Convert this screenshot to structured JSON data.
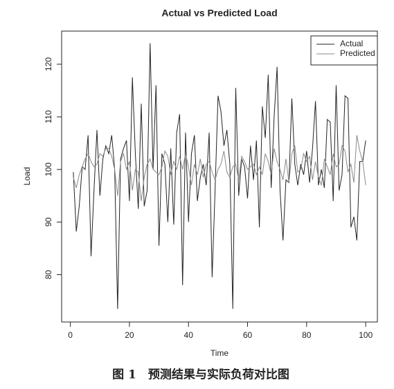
{
  "chart_data": {
    "type": "line",
    "title": "Actual vs Predicted Load",
    "xlabel": "Time",
    "ylabel": "Load",
    "x": [
      1,
      2,
      3,
      4,
      5,
      6,
      7,
      8,
      9,
      10,
      11,
      12,
      13,
      14,
      15,
      16,
      17,
      18,
      19,
      20,
      21,
      22,
      23,
      24,
      25,
      26,
      27,
      28,
      29,
      30,
      31,
      32,
      33,
      34,
      35,
      36,
      37,
      38,
      39,
      40,
      41,
      42,
      43,
      44,
      45,
      46,
      47,
      48,
      49,
      50,
      51,
      52,
      53,
      54,
      55,
      56,
      57,
      58,
      59,
      60,
      61,
      62,
      63,
      64,
      65,
      66,
      67,
      68,
      69,
      70,
      71,
      72,
      73,
      74,
      75,
      76,
      77,
      78,
      79,
      80,
      81,
      82,
      83,
      84,
      85,
      86,
      87,
      88,
      89,
      90,
      91,
      92,
      93,
      94,
      95,
      96,
      97,
      98,
      99,
      100
    ],
    "series": [
      {
        "name": "Actual",
        "color": "#222222",
        "values": [
          99.5,
          88.2,
          93,
          100.5,
          100,
          106.5,
          83.5,
          96,
          107.5,
          95,
          102,
          104.5,
          103,
          106.5,
          100,
          73.5,
          102,
          104,
          105.5,
          94,
          117.5,
          103,
          92.5,
          112.5,
          93,
          96,
          124,
          100,
          116,
          85.5,
          103,
          101,
          90,
          104,
          89.5,
          107,
          110.5,
          78,
          107,
          90,
          103,
          106.5,
          94,
          98.5,
          101,
          97,
          107,
          79.5,
          96,
          114,
          111,
          104.5,
          107.5,
          101,
          73.5,
          115.5,
          95,
          102,
          100.5,
          94.5,
          104.5,
          98,
          105.5,
          89,
          112,
          106,
          118,
          96.5,
          110,
          119.5,
          96,
          86.5,
          98,
          97.5,
          113.5,
          101,
          97,
          101,
          99,
          103.5,
          97.5,
          104,
          113,
          97,
          100,
          96.5,
          109.5,
          109,
          94,
          116,
          96,
          99,
          114,
          113.5,
          89,
          91,
          86.5,
          101.5,
          101.5,
          105.5
        ]
      },
      {
        "name": "Predicted",
        "color": "#888888",
        "values": [
          98.5,
          96.5,
          99,
          100.5,
          102,
          103,
          101.5,
          100.5,
          101,
          103,
          102.5,
          104,
          104,
          102.5,
          100,
          95,
          101.5,
          103,
          100,
          101.5,
          96,
          100,
          99.5,
          94,
          98.5,
          101,
          102,
          100,
          99.5,
          99,
          100.5,
          103.5,
          102.5,
          99,
          101.5,
          100,
          102.5,
          100,
          103,
          100.5,
          97,
          101,
          99,
          102,
          98.5,
          101,
          101.5,
          99.5,
          98,
          100,
          101,
          103.5,
          99.5,
          98.5,
          100.5,
          101,
          98,
          102.5,
          101.5,
          100,
          100.5,
          101,
          99,
          100.5,
          99,
          103,
          101.5,
          99,
          104,
          101.5,
          100,
          98,
          102,
          97.5,
          103,
          104.5,
          99.5,
          100,
          103,
          101.5,
          102.5,
          98,
          101.5,
          98.5,
          97,
          102,
          100.5,
          99,
          103,
          100.5,
          101,
          104.5,
          103.5,
          99.5,
          101,
          97.5,
          106.5,
          103.5,
          101.5,
          97
        ]
      }
    ],
    "xlim": [
      -2.96,
      103.96
    ],
    "ylim": [
      71,
      126.3
    ],
    "xticks": [
      0,
      20,
      40,
      60,
      80,
      100
    ],
    "yticks": [
      80,
      90,
      100,
      110,
      120
    ],
    "legend": "top-right"
  },
  "caption": "图 1　预测结果与实际负荷对比图"
}
